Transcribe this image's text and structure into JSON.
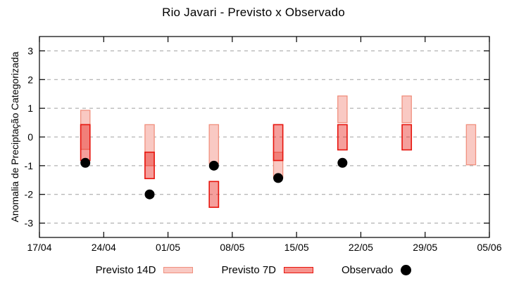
{
  "chart_data": {
    "type": "candlestick",
    "title": "Rio Javari - Previsto x Observado",
    "ylabel": "Anomalia de Preciptação Categorizada",
    "xlabel": "",
    "ylim": [
      -3.5,
      3.5
    ],
    "yticks": [
      -3,
      -2,
      -1,
      0,
      1,
      2,
      3
    ],
    "xticks": {
      "labels": [
        "17/04",
        "24/04",
        "01/05",
        "08/05",
        "15/05",
        "22/05",
        "29/05",
        "05/06"
      ],
      "days": [
        0,
        7,
        14,
        21,
        28,
        35,
        42,
        49
      ],
      "total_days": 49
    },
    "grid": "horizontal-dashed",
    "legend_position": "bottom-center",
    "series": [
      {
        "name": "Previsto 14D",
        "type": "box",
        "key": "p14"
      },
      {
        "name": "Previsto 7D",
        "type": "box",
        "key": "p7"
      },
      {
        "name": "Observado",
        "type": "point",
        "key": "obs"
      }
    ],
    "groups": [
      {
        "date": "22/04",
        "day": 5,
        "p14": {
          "top": 0.93,
          "bottom": -0.43
        },
        "p7": {
          "top": 0.43,
          "bottom": -0.82
        },
        "obs": -0.9
      },
      {
        "date": "29/04",
        "day": 12,
        "p14": {
          "top": 0.43,
          "bottom": -1.0
        },
        "p7": {
          "top": -0.53,
          "bottom": -1.45
        },
        "obs": -2.0
      },
      {
        "date": "06/05",
        "day": 19,
        "p14": {
          "top": 0.43,
          "bottom": -0.93
        },
        "p7": {
          "top": -1.55,
          "bottom": -2.45
        },
        "obs": -1.0
      },
      {
        "date": "13/05",
        "day": 26,
        "p14": {
          "top": -0.53,
          "bottom": -1.43
        },
        "p7": {
          "top": 0.43,
          "bottom": -0.82
        },
        "obs": -1.43
      },
      {
        "date": "20/05",
        "day": 33,
        "p14": {
          "top": 1.43,
          "bottom": 0.5
        },
        "p7": {
          "top": 0.43,
          "bottom": -0.45
        },
        "obs": -0.9
      },
      {
        "date": "27/05",
        "day": 40,
        "p14": {
          "top": 1.43,
          "bottom": 0.5
        },
        "p7": {
          "top": 0.43,
          "bottom": -0.45
        },
        "obs": null
      },
      {
        "date": "03/06",
        "day": 47,
        "p14": {
          "top": 0.43,
          "bottom": -0.97
        },
        "p7": null,
        "obs": null
      }
    ],
    "colors": {
      "p14_fill": "#f9c9c3",
      "p14_border": "#f0907e",
      "p7_fill": "rgba(232,26,18,0.42)",
      "p7_fill_solid": "#f6938d",
      "p7_border": "#e7140d",
      "observed": "#000000",
      "grid": "#a0a0a0",
      "axis": "#000000",
      "background": "#ffffff"
    },
    "legend": {
      "items": [
        {
          "label": "Previsto 14D",
          "swatch": "box-light"
        },
        {
          "label": "Previsto 7D",
          "swatch": "box-red"
        },
        {
          "label": "Observado",
          "swatch": "dot"
        }
      ]
    }
  }
}
